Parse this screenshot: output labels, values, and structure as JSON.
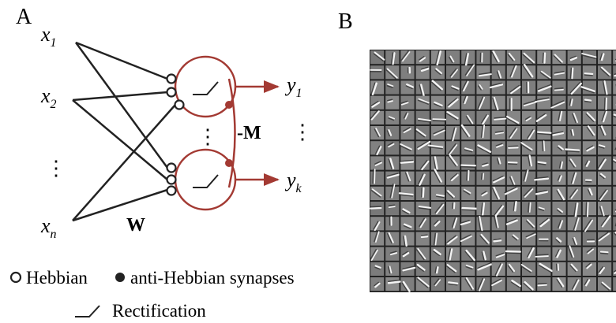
{
  "panels": {
    "a": {
      "label": "A",
      "inputs": [
        {
          "symbol": "x",
          "subscript": "1"
        },
        {
          "symbol": "x",
          "subscript": "2"
        },
        {
          "symbol": "x",
          "subscript": "n"
        }
      ],
      "input_ellipsis": "⋮",
      "weights": "W",
      "lateral": "-M",
      "neuron_ellipsis": "⋮",
      "outputs": [
        {
          "symbol": "y",
          "subscript": "1"
        },
        {
          "symbol": "y",
          "subscript": "k"
        }
      ],
      "output_ellipsis": "⋮",
      "legend": {
        "hebbian": "Hebbian",
        "anti_hebbian": "anti-Hebbian synapses",
        "rectification": "Rectification"
      }
    },
    "b": {
      "label": "B"
    }
  }
}
